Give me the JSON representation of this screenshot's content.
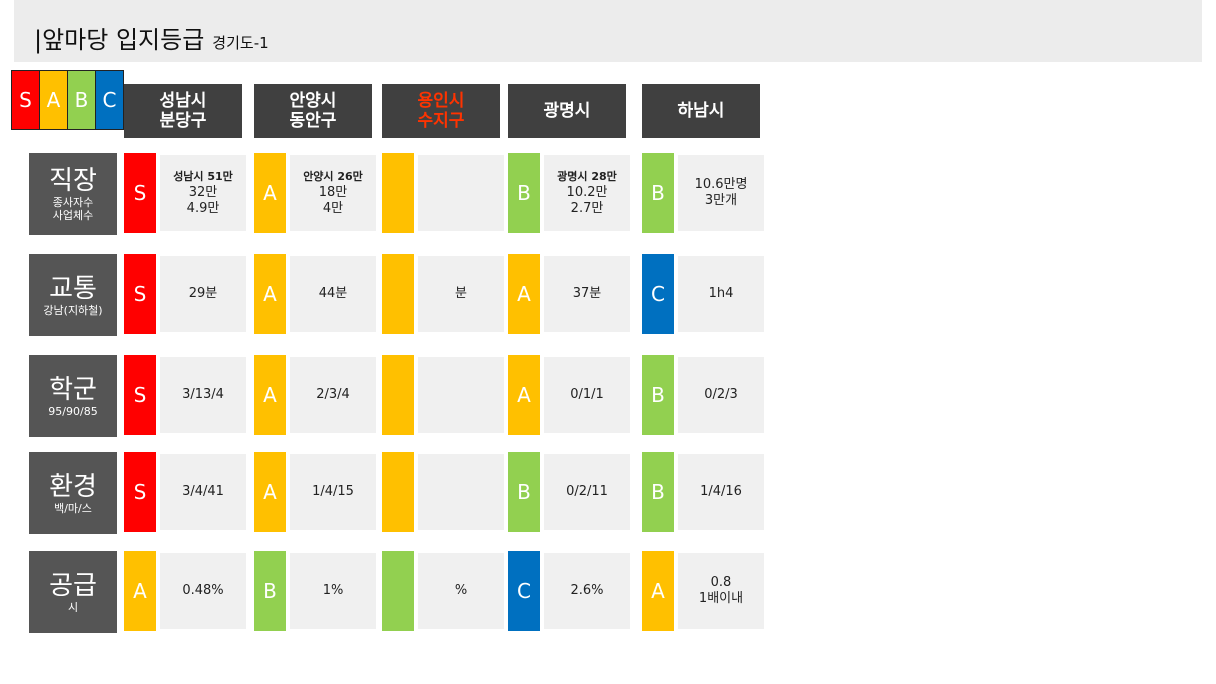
{
  "title": {
    "main": "앞마당 입지등급",
    "sub": "경기도-1",
    "prefix": "|"
  },
  "legend": [
    {
      "label": "S",
      "color": "#ff0000"
    },
    {
      "label": "A",
      "color": "#ffc000"
    },
    {
      "label": "B",
      "color": "#92d050"
    },
    {
      "label": "C",
      "color": "#0070c0"
    }
  ],
  "columns": [
    {
      "line1": "성남시",
      "line2": "분당구",
      "highlight": false
    },
    {
      "line1": "안양시",
      "line2": "동안구",
      "highlight": false
    },
    {
      "line1": "용인시",
      "line2": "수지구",
      "highlight": true
    },
    {
      "line1": "광명시",
      "line2": "",
      "highlight": false
    },
    {
      "line1": "하남시",
      "line2": "",
      "highlight": false
    }
  ],
  "rows": [
    {
      "main": "직장",
      "sub1": "종사자수",
      "sub2": "사업체수"
    },
    {
      "main": "교통",
      "sub1": "강남(지하철)",
      "sub2": ""
    },
    {
      "main": "학군",
      "sub1": "95/90/85",
      "sub2": ""
    },
    {
      "main": "환경",
      "sub1": "백/마/스",
      "sub2": ""
    },
    {
      "main": "공급",
      "sub1": "시",
      "sub2": ""
    }
  ],
  "cells": [
    [
      {
        "grade": "S",
        "bold": "성남시 51만",
        "lines": [
          "32만",
          "4.9만"
        ]
      },
      {
        "grade": "A",
        "bold": "안양시 26만",
        "lines": [
          "18만",
          "4만"
        ]
      },
      {
        "grade": "",
        "bold": "",
        "lines": []
      },
      {
        "grade": "B",
        "bold": "광명시 28만",
        "lines": [
          "10.2만",
          "2.7만"
        ]
      },
      {
        "grade": "B",
        "bold": "",
        "lines": [
          "10.6만명",
          "3만개"
        ]
      }
    ],
    [
      {
        "grade": "S",
        "bold": "",
        "lines": [
          "29분"
        ]
      },
      {
        "grade": "A",
        "bold": "",
        "lines": [
          "44분"
        ]
      },
      {
        "grade": "",
        "bold": "",
        "lines": [
          "분"
        ]
      },
      {
        "grade": "A",
        "bold": "",
        "lines": [
          "37분"
        ]
      },
      {
        "grade": "C",
        "bold": "",
        "lines": [
          "1h4"
        ]
      }
    ],
    [
      {
        "grade": "S",
        "bold": "",
        "lines": [
          "3/13/4"
        ]
      },
      {
        "grade": "A",
        "bold": "",
        "lines": [
          "2/3/4"
        ]
      },
      {
        "grade": "",
        "bold": "",
        "lines": []
      },
      {
        "grade": "A",
        "bold": "",
        "lines": [
          "0/1/1"
        ]
      },
      {
        "grade": "B",
        "bold": "",
        "lines": [
          "0/2/3"
        ]
      }
    ],
    [
      {
        "grade": "S",
        "bold": "",
        "lines": [
          "3/4/41"
        ]
      },
      {
        "grade": "A",
        "bold": "",
        "lines": [
          "1/4/15"
        ]
      },
      {
        "grade": "",
        "bold": "",
        "lines": []
      },
      {
        "grade": "B",
        "bold": "",
        "lines": [
          "0/2/11"
        ]
      },
      {
        "grade": "B",
        "bold": "",
        "lines": [
          "1/4/16"
        ]
      }
    ],
    [
      {
        "grade": "A",
        "bold": "",
        "lines": [
          "0.48%"
        ]
      },
      {
        "grade": "B",
        "bold": "",
        "lines": [
          "1%"
        ]
      },
      {
        "grade": "",
        "bold": "",
        "lines": [
          "%"
        ]
      },
      {
        "grade": "C",
        "bold": "",
        "lines": [
          "2.6%"
        ]
      },
      {
        "grade": "A",
        "bold": "",
        "lines": [
          "0.8",
          "1배이내"
        ]
      }
    ]
  ],
  "empty_grade_colors": [
    "#ffc000",
    "#ffc000",
    "#ffc000",
    "#ffc000",
    "#92d050"
  ]
}
